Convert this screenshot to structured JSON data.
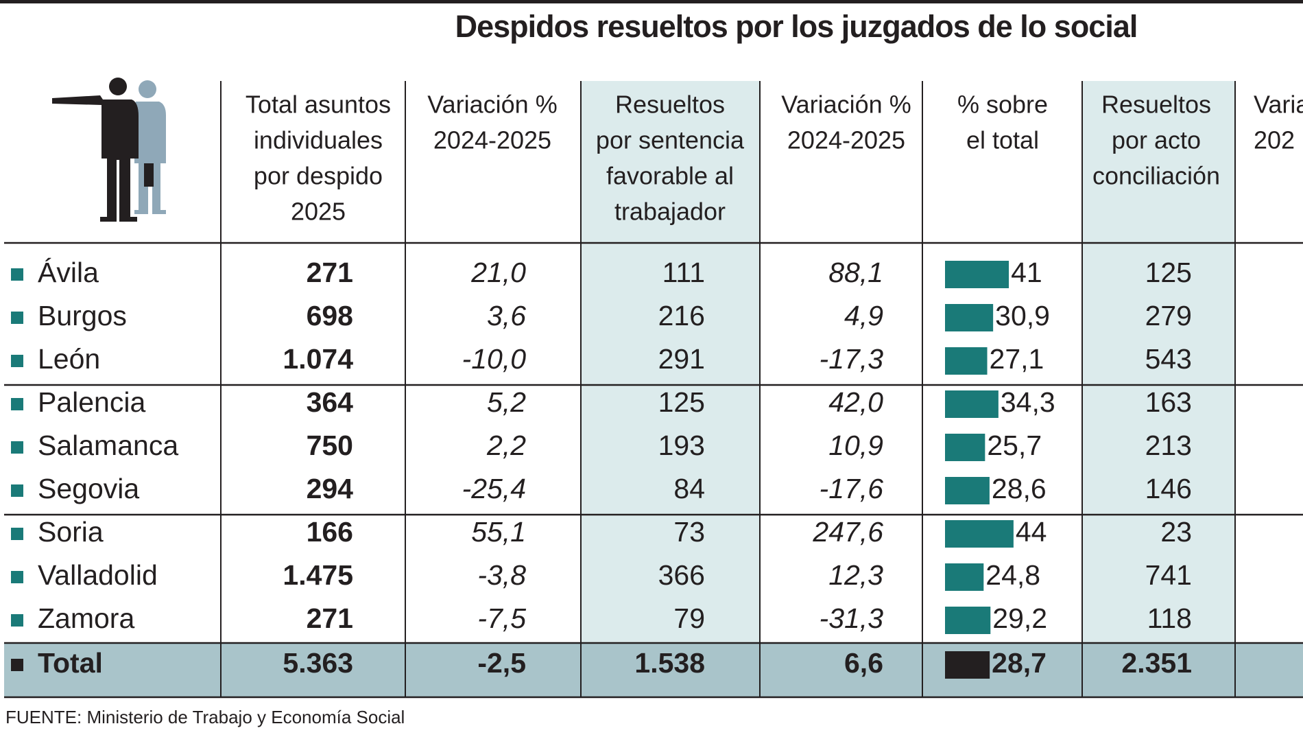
{
  "title": "Despidos resueltos por los juzgados de lo social",
  "table": {
    "headers": [
      [
        "Total asuntos",
        "individuales",
        "por despido",
        "2025"
      ],
      [
        "Variación %",
        "2024-2025"
      ],
      [
        "Resueltos",
        "por sentencia",
        "favorable al",
        "trabajador"
      ],
      [
        "Variación %",
        "2024-2025"
      ],
      [
        "% sobre",
        "el total"
      ],
      [
        "Resueltos",
        "por acto",
        "conciliación"
      ],
      [
        "Varia",
        "202"
      ]
    ],
    "rows": [
      {
        "name": "Ávila",
        "total": "271",
        "var1": "21,0",
        "sentencia": "111",
        "var2": "88,1",
        "pct": {
          "value": 41,
          "label": "41"
        },
        "conciliacion": "125"
      },
      {
        "name": "Burgos",
        "total": "698",
        "var1": "3,6",
        "sentencia": "216",
        "var2": "4,9",
        "pct": {
          "value": 30.9,
          "label": "30,9"
        },
        "conciliacion": "279"
      },
      {
        "name": "León",
        "total": "1.074",
        "var1": "-10,0",
        "sentencia": "291",
        "var2": "-17,3",
        "pct": {
          "value": 27.1,
          "label": "27,1"
        },
        "conciliacion": "543"
      },
      {
        "name": "Palencia",
        "total": "364",
        "var1": "5,2",
        "sentencia": "125",
        "var2": "42,0",
        "pct": {
          "value": 34.3,
          "label": "34,3"
        },
        "conciliacion": "163"
      },
      {
        "name": "Salamanca",
        "total": "750",
        "var1": "2,2",
        "sentencia": "193",
        "var2": "10,9",
        "pct": {
          "value": 25.7,
          "label": "25,7"
        },
        "conciliacion": "213"
      },
      {
        "name": "Segovia",
        "total": "294",
        "var1": "-25,4",
        "sentencia": "84",
        "var2": "-17,6",
        "pct": {
          "value": 28.6,
          "label": "28,6"
        },
        "conciliacion": "146"
      },
      {
        "name": "Soria",
        "total": "166",
        "var1": "55,1",
        "sentencia": "73",
        "var2": "247,6",
        "pct": {
          "value": 44,
          "label": "44"
        },
        "conciliacion": "23"
      },
      {
        "name": "Valladolid",
        "total": "1.475",
        "var1": "-3,8",
        "sentencia": "366",
        "var2": "12,3",
        "pct": {
          "value": 24.8,
          "label": "24,8"
        },
        "conciliacion": "741"
      },
      {
        "name": "Zamora",
        "total": "271",
        "var1": "-7,5",
        "sentencia": "79",
        "var2": "-31,3",
        "pct": {
          "value": 29.2,
          "label": "29,2"
        },
        "conciliacion": "118"
      }
    ],
    "total": {
      "name": "Total",
      "total": "5.363",
      "var1": "-2,5",
      "sentencia": "1.538",
      "var2": "6,6",
      "pct": {
        "value": 28.7,
        "label": "28,7"
      },
      "conciliacion": "2.351"
    }
  },
  "source": "FUENTE: Ministerio de Trabajo y Economía Social"
}
